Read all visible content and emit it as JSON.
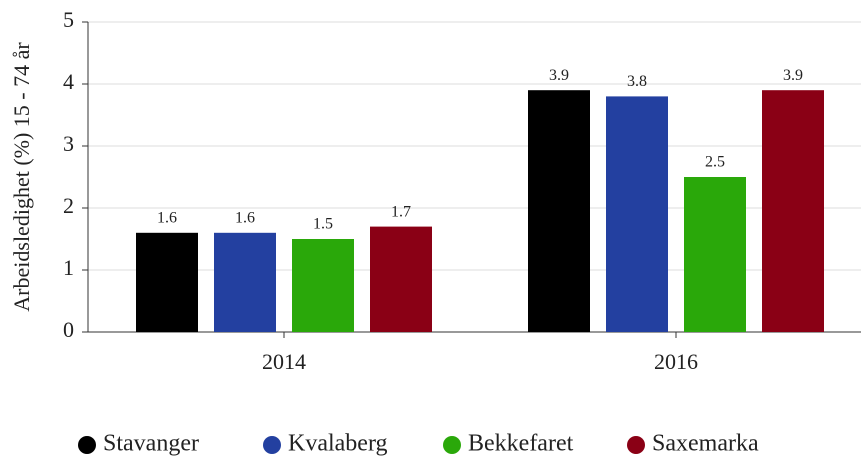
{
  "chart_data": {
    "type": "bar",
    "ylabel": "Arbeidsledighet (%) 15 - 74 år",
    "categories": [
      "2014",
      "2016"
    ],
    "series": [
      {
        "name": "Stavanger",
        "color": "#000000",
        "values": [
          1.6,
          3.9
        ]
      },
      {
        "name": "Kvalaberg",
        "color": "#2340a0",
        "values": [
          1.6,
          3.8
        ]
      },
      {
        "name": "Bekkefaret",
        "color": "#2aa80a",
        "values": [
          1.5,
          2.5
        ]
      },
      {
        "name": "Saxemarka",
        "color": "#8a0015",
        "values": [
          1.7,
          3.9
        ]
      }
    ],
    "ylim": [
      0,
      5
    ],
    "yticks": [
      0,
      1,
      2,
      3,
      4,
      5
    ],
    "grid": true,
    "legend": "bottom"
  }
}
